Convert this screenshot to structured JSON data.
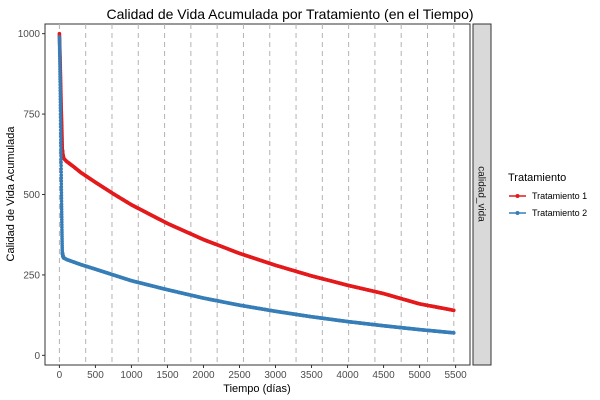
{
  "chart_data": {
    "type": "line",
    "title": "Calidad de Vida Acumulada por Tratamiento (en el Tiempo)",
    "xlabel": "Tiempo (días)",
    "ylabel": "Calidad de Vida Acumulada",
    "facet_label": "calidad_vida",
    "xlim": [
      -200,
      5700
    ],
    "ylim": [
      -30,
      1030
    ],
    "x_ticks": [
      "0",
      "500",
      "1000",
      "1500",
      "2000",
      "2500",
      "3000",
      "3500",
      "4000",
      "4500",
      "5000",
      "5500"
    ],
    "y_ticks": [
      "0",
      "250",
      "500",
      "750",
      "1000"
    ],
    "vlines_x": [
      0,
      365,
      730,
      1095,
      1460,
      1825,
      2190,
      2555,
      2920,
      3285,
      3650,
      4015,
      4380,
      4745,
      5110,
      5475
    ],
    "legend": {
      "title": "Tratamiento",
      "position": "right"
    },
    "grid": false,
    "series": [
      {
        "name": "Tratamiento 1",
        "color": "#E41A1C",
        "x": [
          0,
          5,
          10,
          15,
          20,
          25,
          30,
          35,
          40,
          50,
          60,
          100,
          200,
          300,
          500,
          750,
          1000,
          1500,
          2000,
          2500,
          3000,
          3500,
          4000,
          4500,
          5000,
          5475
        ],
        "y": [
          1000,
          960,
          920,
          870,
          820,
          770,
          730,
          690,
          640,
          620,
          612,
          603,
          586,
          568,
          538,
          502,
          468,
          410,
          360,
          317,
          280,
          247,
          218,
          192,
          160,
          140
        ]
      },
      {
        "name": "Tratamiento 2",
        "color": "#377EB8",
        "x": [
          0,
          5,
          10,
          15,
          20,
          25,
          30,
          35,
          40,
          50,
          60,
          100,
          200,
          300,
          500,
          750,
          1000,
          1500,
          2000,
          2500,
          3000,
          3500,
          4000,
          4500,
          5000,
          5475
        ],
        "y": [
          990,
          930,
          850,
          760,
          660,
          560,
          470,
          390,
          320,
          308,
          303,
          298,
          290,
          282,
          268,
          250,
          232,
          204,
          178,
          156,
          137,
          120,
          105,
          92,
          80,
          70
        ]
      }
    ]
  }
}
